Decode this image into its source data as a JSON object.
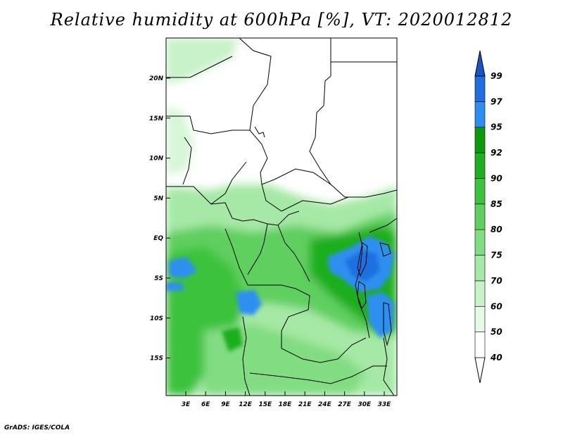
{
  "title": "Relative humidity at 600hPa [%], VT: 2020012812",
  "credit": "GrADS: IGES/COLA",
  "map": {
    "lon_range": [
      0,
      35
    ],
    "lat_range": [
      -20,
      25
    ],
    "lat_ticks": [
      "20N",
      "15N",
      "10N",
      "5N",
      "EQ",
      "5S",
      "10S",
      "15S"
    ],
    "lon_ticks": [
      "3E",
      "6E",
      "9E",
      "12E",
      "15E",
      "18E",
      "21E",
      "24E",
      "27E",
      "30E",
      "33E"
    ]
  },
  "colorbar": {
    "levels": [
      "40",
      "50",
      "60",
      "70",
      "75",
      "80",
      "85",
      "90",
      "92",
      "95",
      "97",
      "99"
    ],
    "colors": [
      "#ffffff",
      "#e6fbe6",
      "#c8f2c8",
      "#a6e8a6",
      "#82dc82",
      "#5fcf5f",
      "#3ec23e",
      "#1fae1f",
      "#0b9a0b",
      "#2f8ff0",
      "#1f6fe0",
      "#1a55c8"
    ]
  }
}
